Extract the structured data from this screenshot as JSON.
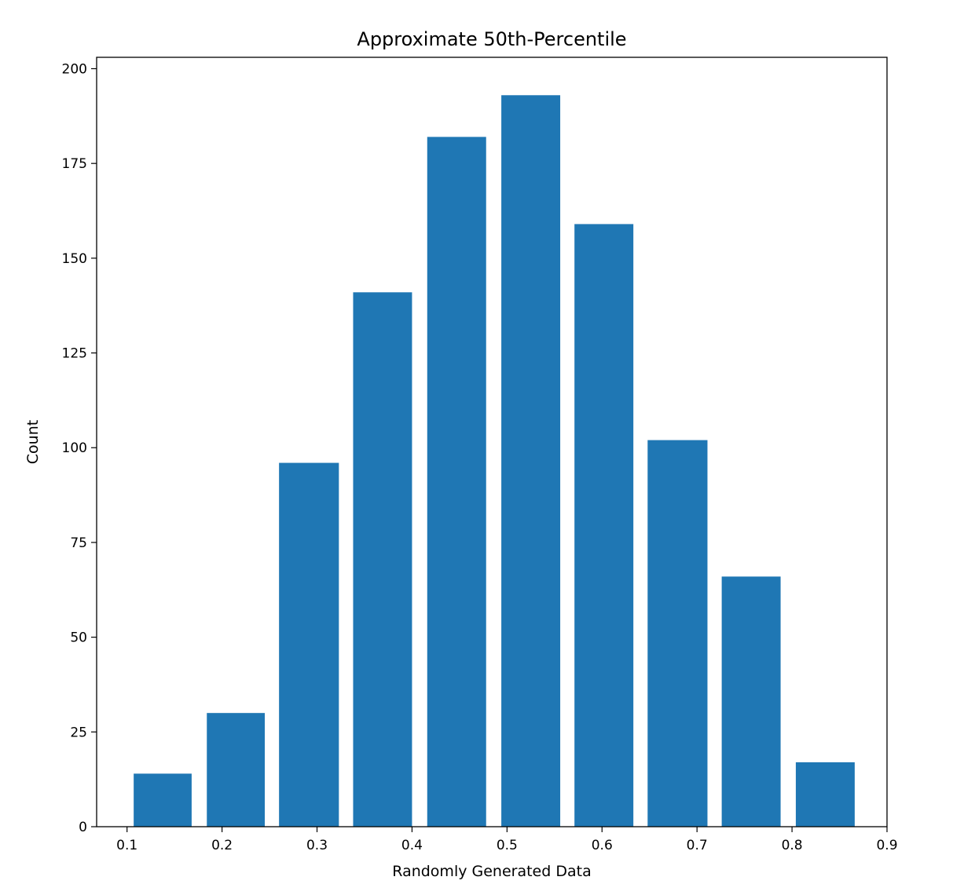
{
  "chart_data": {
    "type": "bar",
    "title": "Approximate 50th-Percentile",
    "xlabel": "Randomly Generated Data",
    "ylabel": "Count",
    "bar_color": "#1f77b4",
    "xlim": [
      0.068,
      0.9
    ],
    "ylim": [
      0,
      203
    ],
    "x_ticks": [
      0.1,
      0.2,
      0.3,
      0.4,
      0.5,
      0.6,
      0.7,
      0.8,
      0.9
    ],
    "x_tick_labels": [
      "0.1",
      "0.2",
      "0.3",
      "0.4",
      "0.5",
      "0.6",
      "0.7",
      "0.8",
      "0.9"
    ],
    "y_ticks": [
      0,
      25,
      50,
      75,
      100,
      125,
      150,
      175,
      200
    ],
    "y_tick_labels": [
      "0",
      "25",
      "50",
      "75",
      "100",
      "125",
      "150",
      "175",
      "200"
    ],
    "grid": false,
    "bars": [
      {
        "x0": 0.107,
        "x1": 0.168,
        "value": 14
      },
      {
        "x0": 0.184,
        "x1": 0.245,
        "value": 30
      },
      {
        "x0": 0.26,
        "x1": 0.323,
        "value": 96
      },
      {
        "x0": 0.338,
        "x1": 0.4,
        "value": 141
      },
      {
        "x0": 0.416,
        "x1": 0.478,
        "value": 182
      },
      {
        "x0": 0.494,
        "x1": 0.556,
        "value": 193
      },
      {
        "x0": 0.571,
        "x1": 0.633,
        "value": 159
      },
      {
        "x0": 0.648,
        "x1": 0.711,
        "value": 102
      },
      {
        "x0": 0.726,
        "x1": 0.788,
        "value": 66
      },
      {
        "x0": 0.804,
        "x1": 0.866,
        "value": 17
      }
    ]
  }
}
